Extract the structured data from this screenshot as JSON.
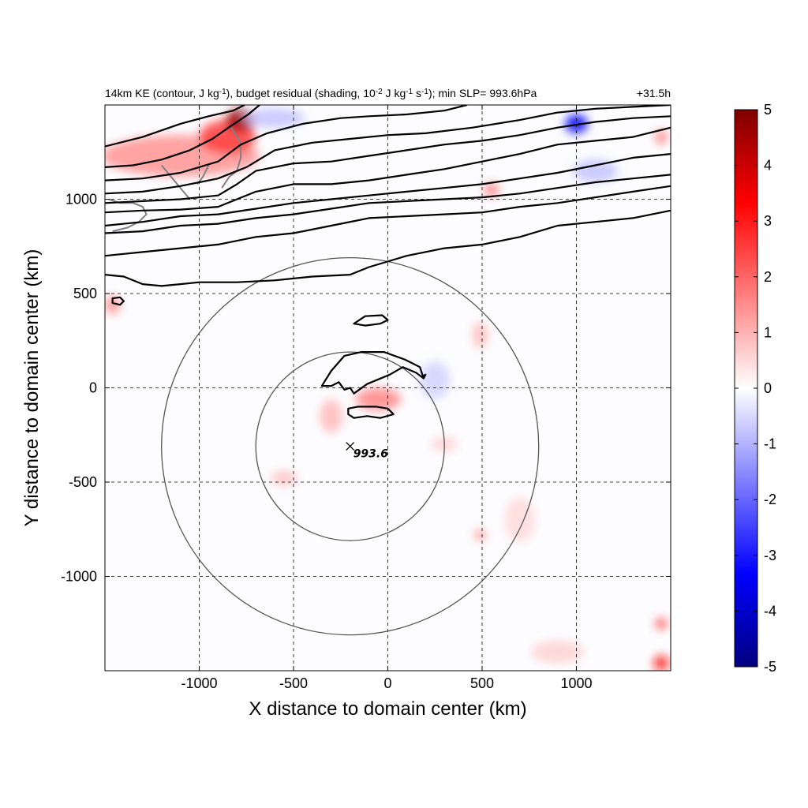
{
  "chart_data": {
    "type": "heatmap",
    "title": {
      "left_parts": [
        {
          "t": "14km KE (contour, J kg"
        },
        {
          "t": "-1",
          "sup": true
        },
        {
          "t": "), budget residual (shading, 10"
        },
        {
          "t": "-2",
          "sup": true
        },
        {
          "t": " J kg"
        },
        {
          "t": "-1",
          "sup": true
        },
        {
          "t": " s"
        },
        {
          "t": "-1",
          "sup": true
        },
        {
          "t": "); min SLP= 993.6hPa"
        }
      ],
      "right": "+31.5h"
    },
    "xlabel": "X distance to domain center (km)",
    "ylabel": "Y distance to domain center (km)",
    "xlim": [
      -1500,
      1500
    ],
    "ylim": [
      -1500,
      1500
    ],
    "xticks": [
      -1000,
      -500,
      0,
      500,
      1000
    ],
    "yticks": [
      -1000,
      -500,
      0,
      500,
      1000
    ],
    "xtick_labels": [
      "-1000",
      "-500",
      "0",
      "500",
      "1000"
    ],
    "ytick_labels": [
      "-1000",
      "-500",
      "0",
      "500",
      "1000"
    ],
    "grid": true,
    "colorbar": {
      "range": [
        -5,
        5
      ],
      "ticks": [
        5,
        4,
        3,
        2,
        1,
        0,
        -1,
        -2,
        -3,
        -4,
        -5
      ],
      "tick_labels": [
        "5",
        "4",
        "3",
        "2",
        "1",
        "0",
        "-1",
        "-2",
        "-3",
        "-4",
        "-5"
      ],
      "colors": [
        "#00007f",
        "#0000ff",
        "#7f7fff",
        "#ffffff",
        "#ff7f7f",
        "#ff0000",
        "#7f0000"
      ]
    },
    "storm_center": {
      "x": -200,
      "y": -310,
      "label": "993.6"
    },
    "range_rings_km": [
      500,
      1000
    ],
    "ke_contours": [
      {
        "points": [
          [
            -1500,
            1280
          ],
          [
            -1300,
            1330
          ],
          [
            -1100,
            1400
          ],
          [
            -950,
            1440
          ],
          [
            -820,
            1470
          ],
          [
            -760,
            1500
          ]
        ]
      },
      {
        "points": [
          [
            -1500,
            1170
          ],
          [
            -1350,
            1180
          ],
          [
            -1200,
            1210
          ],
          [
            -1050,
            1260
          ],
          [
            -930,
            1320
          ],
          [
            -830,
            1390
          ],
          [
            -740,
            1450
          ],
          [
            -680,
            1500
          ]
        ]
      },
      {
        "points": [
          [
            -1500,
            1100
          ],
          [
            -1300,
            1110
          ],
          [
            -1100,
            1140
          ],
          [
            -900,
            1200
          ],
          [
            -780,
            1290
          ],
          [
            -640,
            1350
          ],
          [
            -450,
            1400
          ],
          [
            -250,
            1430
          ],
          [
            -100,
            1440
          ],
          [
            100,
            1450
          ],
          [
            300,
            1470
          ],
          [
            420,
            1500
          ]
        ]
      },
      {
        "points": [
          [
            -1500,
            1030
          ],
          [
            -1300,
            1040
          ],
          [
            -1100,
            1070
          ],
          [
            -900,
            1110
          ],
          [
            -750,
            1170
          ],
          [
            -600,
            1260
          ],
          [
            -400,
            1300
          ],
          [
            -200,
            1320
          ],
          [
            0,
            1340
          ],
          [
            200,
            1350
          ],
          [
            450,
            1380
          ],
          [
            700,
            1420
          ],
          [
            900,
            1460
          ],
          [
            1100,
            1480
          ],
          [
            1300,
            1490
          ],
          [
            1500,
            1500
          ]
        ]
      },
      {
        "points": [
          [
            -1500,
            980
          ],
          [
            -1300,
            990
          ],
          [
            -1100,
            1000
          ],
          [
            -900,
            1020
          ],
          [
            -800,
            1080
          ],
          [
            -700,
            1150
          ],
          [
            -500,
            1190
          ],
          [
            -300,
            1200
          ],
          [
            -100,
            1230
          ],
          [
            100,
            1260
          ],
          [
            300,
            1290
          ],
          [
            500,
            1310
          ],
          [
            700,
            1340
          ],
          [
            900,
            1380
          ],
          [
            1100,
            1410
          ],
          [
            1300,
            1430
          ],
          [
            1500,
            1440
          ]
        ]
      },
      {
        "points": [
          [
            -1500,
            930
          ],
          [
            -1300,
            940
          ],
          [
            -1100,
            945
          ],
          [
            -900,
            960
          ],
          [
            -700,
            1040
          ],
          [
            -500,
            1080
          ],
          [
            -300,
            1080
          ],
          [
            -100,
            1100
          ],
          [
            100,
            1130
          ],
          [
            300,
            1160
          ],
          [
            500,
            1200
          ],
          [
            700,
            1240
          ],
          [
            900,
            1290
          ],
          [
            1100,
            1310
          ],
          [
            1300,
            1330
          ],
          [
            1500,
            1380
          ]
        ]
      },
      {
        "points": [
          [
            -1500,
            860
          ],
          [
            -1300,
            880
          ],
          [
            -1100,
            910
          ],
          [
            -900,
            920
          ],
          [
            -700,
            950
          ],
          [
            -500,
            980
          ],
          [
            -300,
            1000
          ],
          [
            -100,
            1020
          ],
          [
            100,
            1040
          ],
          [
            300,
            1060
          ],
          [
            500,
            1080
          ],
          [
            700,
            1110
          ],
          [
            900,
            1140
          ],
          [
            1100,
            1180
          ],
          [
            1300,
            1220
          ],
          [
            1500,
            1240
          ]
        ]
      },
      {
        "points": [
          [
            -1500,
            820
          ],
          [
            -1300,
            830
          ],
          [
            -1100,
            860
          ],
          [
            -900,
            870
          ],
          [
            -700,
            900
          ],
          [
            -500,
            920
          ],
          [
            -300,
            950
          ],
          [
            -100,
            980
          ],
          [
            100,
            990
          ],
          [
            300,
            1000
          ],
          [
            500,
            1010
          ],
          [
            700,
            1030
          ],
          [
            900,
            1060
          ],
          [
            1100,
            1090
          ],
          [
            1300,
            1110
          ],
          [
            1500,
            1130
          ]
        ]
      },
      {
        "points": [
          [
            -1500,
            700
          ],
          [
            -1300,
            720
          ],
          [
            -1100,
            740
          ],
          [
            -900,
            760
          ],
          [
            -700,
            800
          ],
          [
            -500,
            820
          ],
          [
            -300,
            860
          ],
          [
            -100,
            900
          ],
          [
            100,
            910
          ],
          [
            300,
            920
          ],
          [
            500,
            930
          ],
          [
            700,
            960
          ],
          [
            900,
            980
          ],
          [
            1100,
            1010
          ],
          [
            1300,
            1040
          ],
          [
            1500,
            1070
          ]
        ]
      },
      {
        "points": [
          [
            -1500,
            600
          ],
          [
            -1400,
            590
          ],
          [
            -1300,
            550
          ],
          [
            -1200,
            540
          ],
          [
            -1100,
            550
          ],
          [
            -1000,
            560
          ],
          [
            -900,
            560
          ],
          [
            -800,
            560
          ],
          [
            -600,
            570
          ],
          [
            -400,
            590
          ],
          [
            -200,
            600
          ],
          [
            -100,
            640
          ],
          [
            100,
            700
          ],
          [
            300,
            740
          ],
          [
            500,
            760
          ],
          [
            700,
            800
          ],
          [
            900,
            860
          ],
          [
            1100,
            880
          ],
          [
            1300,
            900
          ],
          [
            1500,
            940
          ]
        ]
      },
      {
        "closed": true,
        "points": [
          [
            -1460,
            450
          ],
          [
            -1420,
            440
          ],
          [
            -1400,
            460
          ],
          [
            -1420,
            480
          ],
          [
            -1460,
            475
          ]
        ]
      },
      {
        "closed": true,
        "points": [
          [
            -180,
            340
          ],
          [
            -120,
            380
          ],
          [
            -30,
            385
          ],
          [
            0,
            360
          ],
          [
            -40,
            340
          ],
          [
            -120,
            330
          ]
        ]
      },
      {
        "closed": true,
        "points": [
          [
            -350,
            10
          ],
          [
            -300,
            90
          ],
          [
            -230,
            170
          ],
          [
            -140,
            190
          ],
          [
            -20,
            190
          ],
          [
            90,
            150
          ],
          [
            170,
            110
          ],
          [
            190,
            50
          ],
          [
            150,
            80
          ],
          [
            80,
            110
          ],
          [
            10,
            70
          ],
          [
            -110,
            20
          ],
          [
            -180,
            -30
          ],
          [
            -200,
            0
          ],
          [
            -230,
            -10
          ],
          [
            -260,
            30
          ],
          [
            -300,
            10
          ]
        ]
      },
      {
        "closed": true,
        "points": [
          [
            -210,
            -110
          ],
          [
            -160,
            -100
          ],
          [
            -60,
            -100
          ],
          [
            0,
            -110
          ],
          [
            30,
            -140
          ],
          [
            -40,
            -160
          ],
          [
            -110,
            -150
          ],
          [
            -180,
            -160
          ],
          [
            -210,
            -140
          ]
        ]
      },
      {
        "closed": true,
        "points": [
          [
            180,
            60
          ],
          [
            200,
            70
          ],
          [
            190,
            50
          ]
        ]
      }
    ],
    "coastlines": [
      {
        "points": [
          [
            -830,
            1380
          ],
          [
            -780,
            1300
          ],
          [
            -780,
            1220
          ],
          [
            -800,
            1150
          ],
          [
            -840,
            1120
          ],
          [
            -880,
            1060
          ]
        ]
      },
      {
        "points": [
          [
            -1200,
            1180
          ],
          [
            -1150,
            1120
          ],
          [
            -1100,
            1060
          ],
          [
            -1050,
            1000
          ]
        ]
      },
      {
        "points": [
          [
            -1480,
            1000
          ],
          [
            -1420,
            980
          ],
          [
            -1350,
            980
          ],
          [
            -1300,
            960
          ],
          [
            -1280,
            920
          ],
          [
            -1320,
            880
          ],
          [
            -1380,
            850
          ],
          [
            -1460,
            830
          ]
        ]
      },
      {
        "points": [
          [
            -950,
            1180
          ],
          [
            -980,
            1120
          ],
          [
            -1010,
            1080
          ]
        ]
      }
    ],
    "heat_blobs": [
      {
        "x": -1100,
        "y": 1230,
        "rx": 420,
        "ry": 110,
        "v": 1.4
      },
      {
        "x": -850,
        "y": 1330,
        "rx": 150,
        "ry": 90,
        "v": 2.6
      },
      {
        "x": -780,
        "y": 1420,
        "rx": 80,
        "ry": 60,
        "v": 4.6
      },
      {
        "x": -600,
        "y": 1430,
        "rx": 160,
        "ry": 50,
        "v": -0.8
      },
      {
        "x": 1000,
        "y": 1400,
        "rx": 60,
        "ry": 50,
        "v": -3.4
      },
      {
        "x": 550,
        "y": 1050,
        "rx": 40,
        "ry": 40,
        "v": 1.6
      },
      {
        "x": 1450,
        "y": 1330,
        "rx": 30,
        "ry": 40,
        "v": 1.8
      },
      {
        "x": -1460,
        "y": 440,
        "rx": 40,
        "ry": 50,
        "v": 1.5
      },
      {
        "x": -50,
        "y": -60,
        "rx": 120,
        "ry": 60,
        "v": 1.6
      },
      {
        "x": -300,
        "y": -150,
        "rx": 60,
        "ry": 90,
        "v": 0.9
      },
      {
        "x": -550,
        "y": -480,
        "rx": 70,
        "ry": 40,
        "v": 0.8
      },
      {
        "x": 300,
        "y": -300,
        "rx": 70,
        "ry": 40,
        "v": 0.6
      },
      {
        "x": 490,
        "y": 280,
        "rx": 40,
        "ry": 70,
        "v": 0.9
      },
      {
        "x": 490,
        "y": -780,
        "rx": 25,
        "ry": 25,
        "v": 2.0
      },
      {
        "x": 1450,
        "y": -1460,
        "rx": 40,
        "ry": 40,
        "v": 3.2
      },
      {
        "x": 1450,
        "y": -1250,
        "rx": 30,
        "ry": 30,
        "v": 2.5
      },
      {
        "x": 900,
        "y": -1400,
        "rx": 140,
        "ry": 60,
        "v": 0.6
      },
      {
        "x": 700,
        "y": -700,
        "rx": 80,
        "ry": 120,
        "v": 0.5
      },
      {
        "x": 250,
        "y": 40,
        "rx": 80,
        "ry": 100,
        "v": -0.6
      },
      {
        "x": 1100,
        "y": 1150,
        "rx": 120,
        "ry": 60,
        "v": -0.8
      }
    ]
  }
}
